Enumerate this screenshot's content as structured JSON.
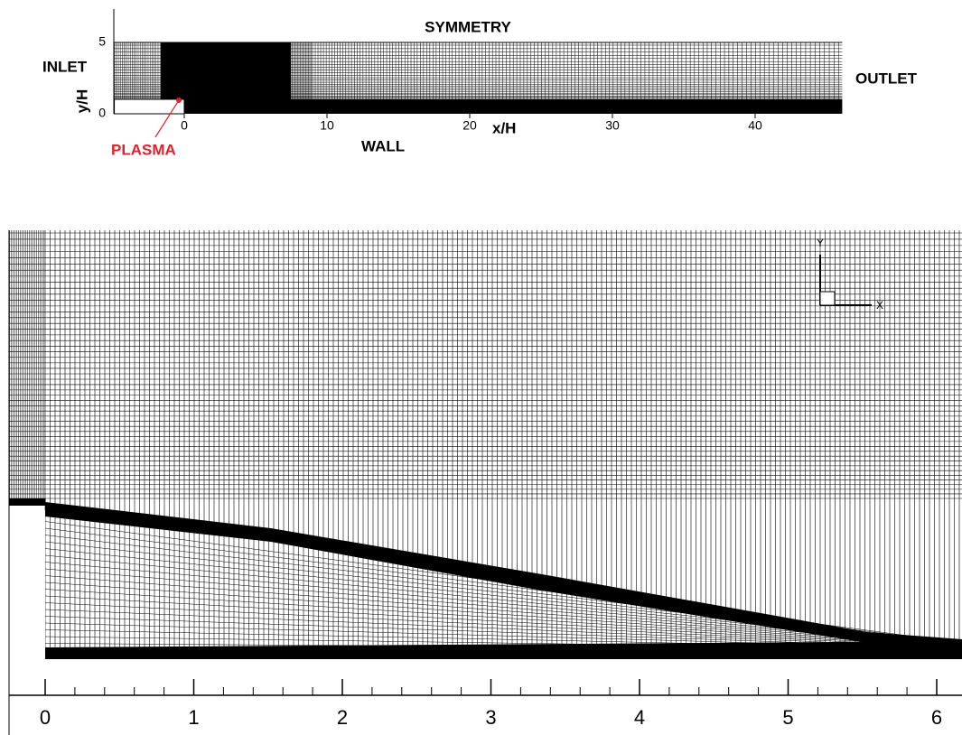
{
  "overview": {
    "labels": {
      "symmetry": "SYMMETRY",
      "inlet": "INLET",
      "outlet": "OUTLET",
      "wall": "WALL",
      "plasma": "PLASMA"
    },
    "xlabel": "x/H",
    "ylabel": "y/H",
    "xlim": [
      -4.9,
      46.1
    ],
    "ylim": [
      0,
      5
    ],
    "xticks": [
      0,
      10,
      20,
      30,
      40
    ],
    "yticks": [
      0,
      5
    ]
  },
  "detail": {
    "xlim": [
      -0.24,
      6.19
    ],
    "xticks": [
      0,
      1,
      2,
      3,
      4,
      5,
      6
    ],
    "triad": {
      "x": "X",
      "y": "Y"
    }
  }
}
